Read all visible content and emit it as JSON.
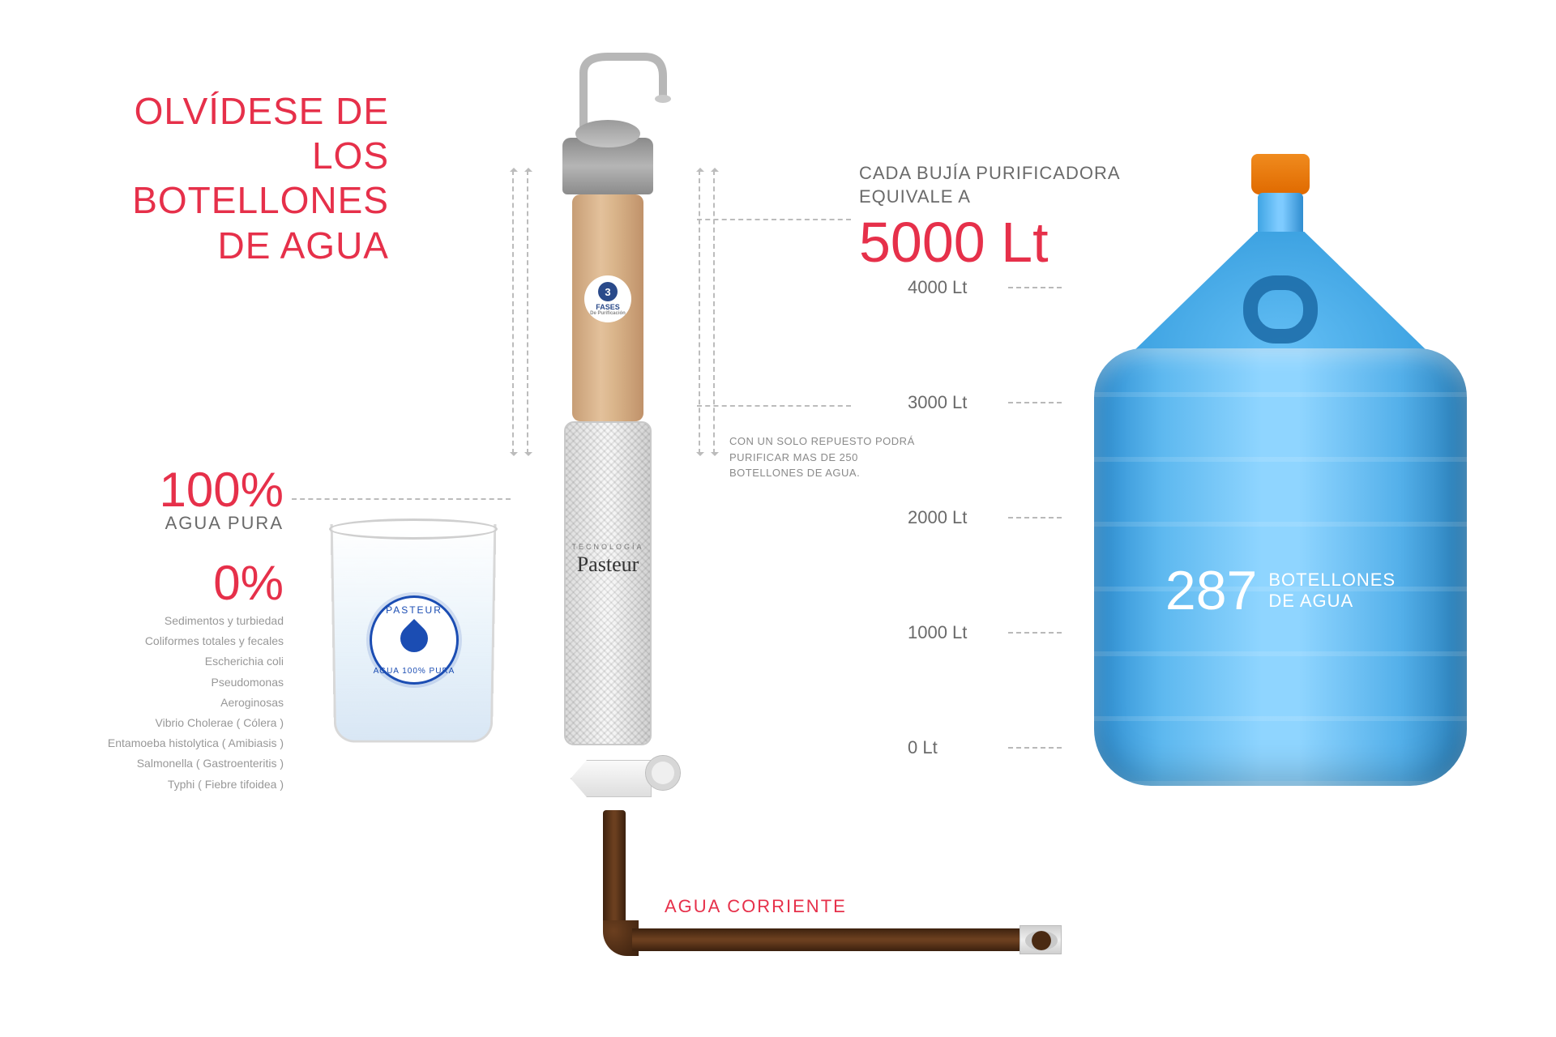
{
  "colors": {
    "accent": "#e6304a",
    "text_muted": "#6a6a6a",
    "text_light": "#989898",
    "dash": "#bcbcbc",
    "bottle_blue": "#4aa9e8",
    "bottle_cap": "#ef7c12",
    "pipe_brown": "#5e3619",
    "badge_blue": "#1b4db3"
  },
  "headline": {
    "line1": "OLVÍDESE DE",
    "line2": "LOS BOTELLONES",
    "line3": "DE AGUA"
  },
  "stats": {
    "pure_value": "100%",
    "pure_label": "AGUA PURA",
    "zero_value": "0%",
    "contaminants": [
      "Sedimentos y turbiedad",
      "Coliformes totales y fecales",
      "Escherichia coli",
      "Pseudomonas",
      "Aeroginosas",
      "Vibrio Cholerae ( Cólera )",
      "Entamoeba histolytica ( Amibiasis )",
      "Salmonella ( Gastroenteritis )",
      "Typhi ( Fiebre tifoidea )"
    ]
  },
  "glass_badge": {
    "top": "PASTEUR",
    "bottom": "AGUA 100% PURA"
  },
  "filter": {
    "ceramic_badge_num": "3",
    "ceramic_badge_label": "FASES",
    "ceramic_badge_sub": "De Purificación",
    "steel_tech": "TECNOLOGÍA",
    "steel_brand": "Pasteur"
  },
  "note": "CON UN SOLO REPUESTO PODRÁ PURIFICAR MAS DE 250 BOTELLONES DE AGUA.",
  "tap_water_label": "AGUA CORRIENTE",
  "equivalence": {
    "top_line1": "CADA BUJÍA PURIFICADORA",
    "top_line2": "EQUIVALE A",
    "value": "5000 Lt"
  },
  "scale": {
    "ticks": [
      "4000 Lt",
      "3000 Lt",
      "2000 Lt",
      "1000 Lt",
      "0 Lt"
    ],
    "tick_spacing_px": 142
  },
  "bottle": {
    "count": "287",
    "label_line1": "BOTELLONES",
    "label_line2": "DE AGUA"
  }
}
